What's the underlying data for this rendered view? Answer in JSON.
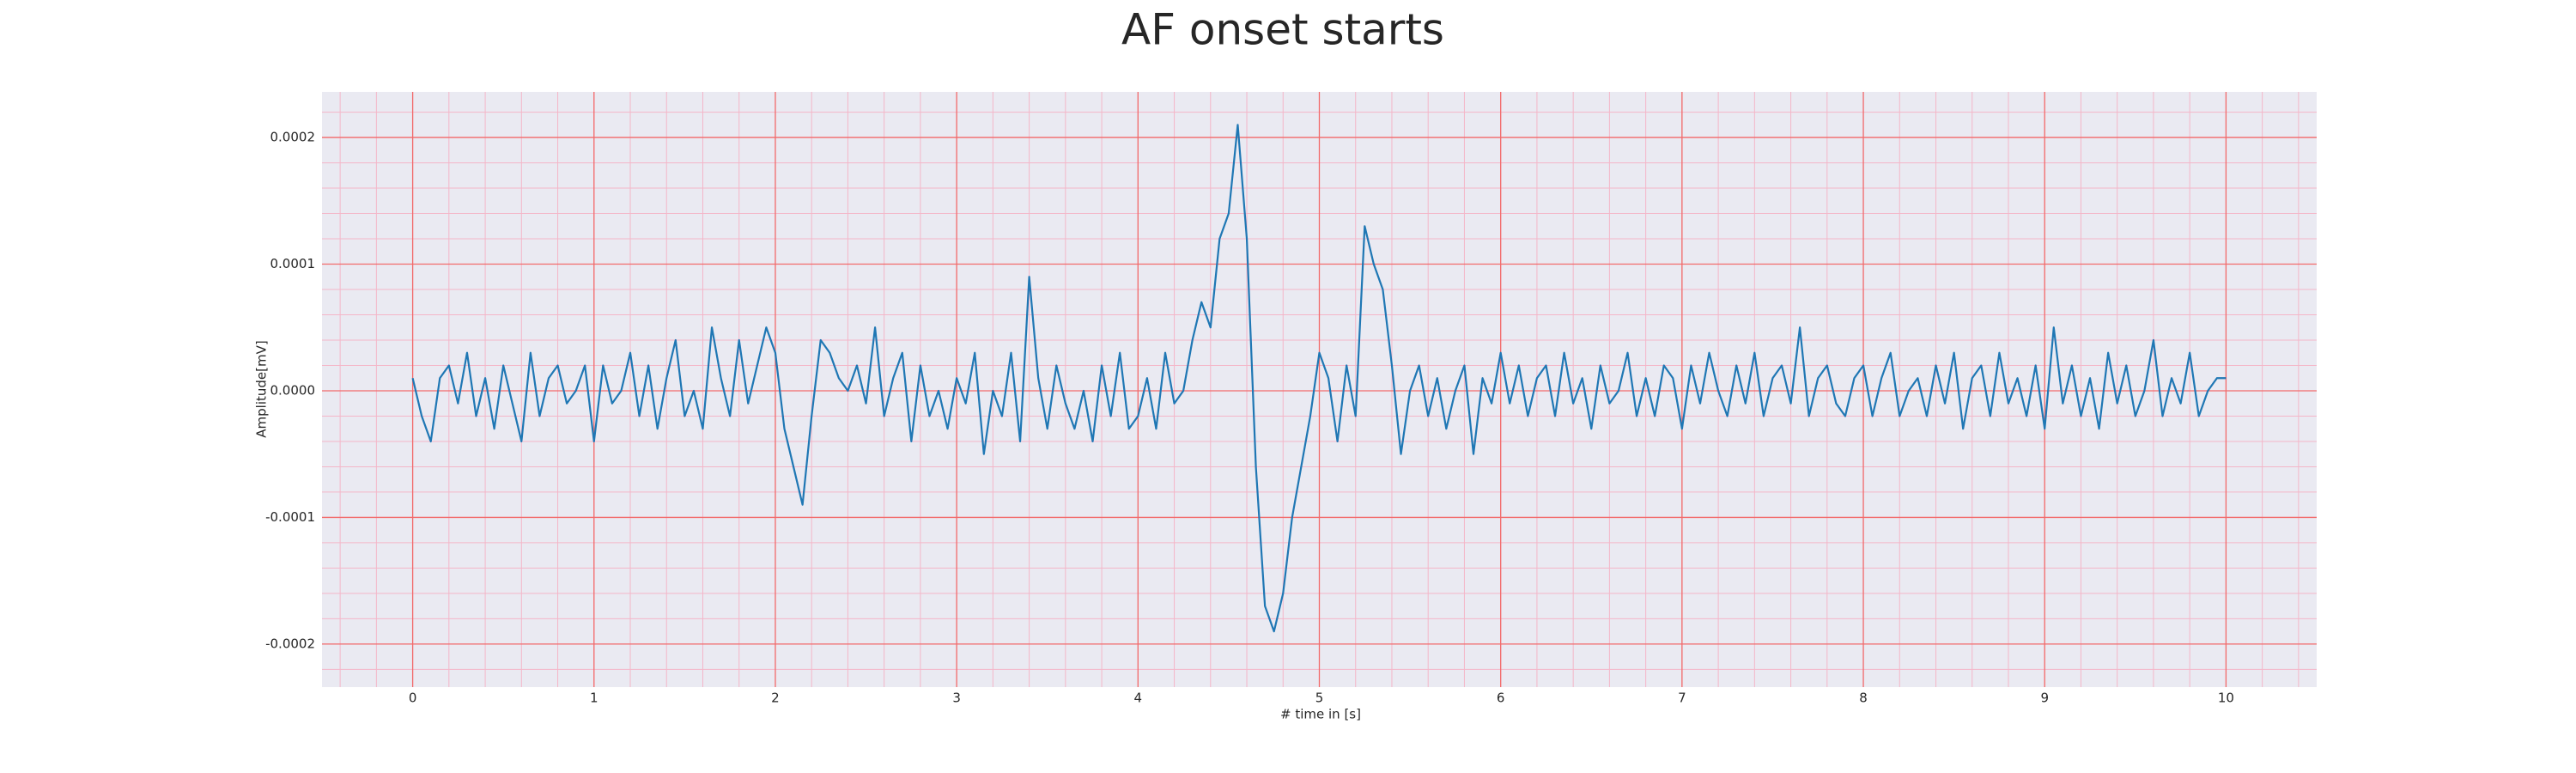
{
  "chart_data": {
    "type": "line",
    "title": "AF onset starts",
    "xlabel": "# time in [s]",
    "ylabel": "Amplitude[mV]",
    "xlim": [
      -0.5,
      10.5
    ],
    "ylim": [
      -0.000234,
      0.000236
    ],
    "xticks": [
      0,
      1,
      2,
      3,
      4,
      5,
      6,
      7,
      8,
      9,
      10
    ],
    "yticks": [
      -0.0002,
      -0.0001,
      {
        "value": 0,
        "label": "0.0000"
      },
      0.0001,
      0.0002
    ],
    "grid": true,
    "minor_grid": true,
    "x": [
      0,
      0.05,
      0.1,
      0.15,
      0.2,
      0.25,
      0.3,
      0.35,
      0.4,
      0.45,
      0.5,
      0.55,
      0.6,
      0.65,
      0.7,
      0.75,
      0.8,
      0.85,
      0.9,
      0.95,
      1,
      1.05,
      1.1,
      1.15,
      1.2,
      1.25,
      1.3,
      1.35,
      1.4,
      1.45,
      1.5,
      1.55,
      1.6,
      1.65,
      1.7,
      1.75,
      1.8,
      1.85,
      1.9,
      1.95,
      2,
      2.05,
      2.1,
      2.15,
      2.2,
      2.25,
      2.3,
      2.35,
      2.4,
      2.45,
      2.5,
      2.55,
      2.6,
      2.65,
      2.7,
      2.75,
      2.8,
      2.85,
      2.9,
      2.95,
      3,
      3.05,
      3.1,
      3.15,
      3.2,
      3.25,
      3.3,
      3.35,
      3.4,
      3.45,
      3.5,
      3.55,
      3.6,
      3.65,
      3.7,
      3.75,
      3.8,
      3.85,
      3.9,
      3.95,
      4,
      4.05,
      4.1,
      4.15,
      4.2,
      4.25,
      4.3,
      4.35,
      4.4,
      4.45,
      4.5,
      4.55,
      4.6,
      4.65,
      4.7,
      4.75,
      4.8,
      4.85,
      4.9,
      4.95,
      5,
      5.05,
      5.1,
      5.15,
      5.2,
      5.25,
      5.3,
      5.35,
      5.4,
      5.45,
      5.5,
      5.55,
      5.6,
      5.65,
      5.7,
      5.75,
      5.8,
      5.85,
      5.9,
      5.95,
      6,
      6.05,
      6.1,
      6.15,
      6.2,
      6.25,
      6.3,
      6.35,
      6.4,
      6.45,
      6.5,
      6.55,
      6.6,
      6.65,
      6.7,
      6.75,
      6.8,
      6.85,
      6.9,
      6.95,
      7,
      7.05,
      7.1,
      7.15,
      7.2,
      7.25,
      7.3,
      7.35,
      7.4,
      7.45,
      7.5,
      7.55,
      7.6,
      7.65,
      7.7,
      7.75,
      7.8,
      7.85,
      7.9,
      7.95,
      8,
      8.05,
      8.1,
      8.15,
      8.2,
      8.25,
      8.3,
      8.35,
      8.4,
      8.45,
      8.5,
      8.55,
      8.6,
      8.65,
      8.7,
      8.75,
      8.8,
      8.85,
      8.9,
      8.95,
      9,
      9.05,
      9.1,
      9.15,
      9.2,
      9.25,
      9.3,
      9.35,
      9.4,
      9.45,
      9.5,
      9.55,
      9.6,
      9.65,
      9.7,
      9.75,
      9.8,
      9.85,
      9.9,
      9.95,
      10
    ],
    "series": [
      {
        "color": "#1f77b4",
        "values": [
          1e-05,
          -2e-05,
          -4e-05,
          1e-05,
          2e-05,
          -1e-05,
          3e-05,
          -2e-05,
          1e-05,
          -3e-05,
          2e-05,
          -1e-05,
          -4e-05,
          3e-05,
          -2e-05,
          1e-05,
          2e-05,
          -1e-05,
          0,
          2e-05,
          -4e-05,
          2e-05,
          -1e-05,
          0,
          3e-05,
          -2e-05,
          2e-05,
          -3e-05,
          1e-05,
          4e-05,
          -2e-05,
          0,
          -3e-05,
          5e-05,
          1e-05,
          -2e-05,
          4e-05,
          -1e-05,
          2e-05,
          5e-05,
          3e-05,
          -3e-05,
          -6e-05,
          -9e-05,
          -2e-05,
          4e-05,
          3e-05,
          1e-05,
          0,
          2e-05,
          -1e-05,
          5e-05,
          -2e-05,
          1e-05,
          3e-05,
          -4e-05,
          2e-05,
          -2e-05,
          0,
          -3e-05,
          1e-05,
          -1e-05,
          3e-05,
          -5e-05,
          0,
          -2e-05,
          3e-05,
          -4e-05,
          9e-05,
          1e-05,
          -3e-05,
          2e-05,
          -1e-05,
          -3e-05,
          0,
          -4e-05,
          2e-05,
          -2e-05,
          3e-05,
          -3e-05,
          -2e-05,
          1e-05,
          -3e-05,
          3e-05,
          -1e-05,
          0,
          4e-05,
          7e-05,
          5e-05,
          0.00012,
          0.00014,
          0.00021,
          0.00012,
          -6e-05,
          -0.00017,
          -0.00019,
          -0.00016,
          -0.0001,
          -6e-05,
          -2e-05,
          3e-05,
          1e-05,
          -4e-05,
          2e-05,
          -2e-05,
          0.00013,
          0.0001,
          8e-05,
          2e-05,
          -5e-05,
          0,
          2e-05,
          -2e-05,
          1e-05,
          -3e-05,
          0,
          2e-05,
          -5e-05,
          1e-05,
          -1e-05,
          3e-05,
          -1e-05,
          2e-05,
          -2e-05,
          1e-05,
          2e-05,
          -2e-05,
          3e-05,
          -1e-05,
          1e-05,
          -3e-05,
          2e-05,
          -1e-05,
          0,
          3e-05,
          -2e-05,
          1e-05,
          -2e-05,
          2e-05,
          1e-05,
          -3e-05,
          2e-05,
          -1e-05,
          3e-05,
          0,
          -2e-05,
          2e-05,
          -1e-05,
          3e-05,
          -2e-05,
          1e-05,
          2e-05,
          -1e-05,
          5e-05,
          -2e-05,
          1e-05,
          2e-05,
          -1e-05,
          -2e-05,
          1e-05,
          2e-05,
          -2e-05,
          1e-05,
          3e-05,
          -2e-05,
          0,
          1e-05,
          -2e-05,
          2e-05,
          -1e-05,
          3e-05,
          -3e-05,
          1e-05,
          2e-05,
          -2e-05,
          3e-05,
          -1e-05,
          1e-05,
          -2e-05,
          2e-05,
          -3e-05,
          5e-05,
          -1e-05,
          2e-05,
          -2e-05,
          1e-05,
          -3e-05,
          3e-05,
          -1e-05,
          2e-05,
          -2e-05,
          0,
          4e-05,
          -2e-05,
          1e-05,
          -1e-05,
          3e-05,
          -2e-05,
          0,
          1e-05,
          1e-05
        ]
      }
    ]
  }
}
